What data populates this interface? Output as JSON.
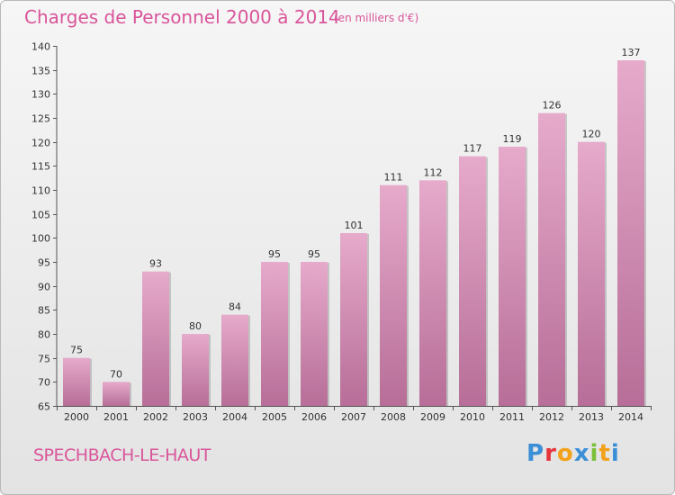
{
  "header": {
    "title": "Charges de Personnel 2000 à 2014",
    "subtitle": "(en milliers d'€)"
  },
  "footer": {
    "commune": "SPECHBACH-LE-HAUT",
    "logo_letters": [
      "P",
      "r",
      "o",
      "x",
      "i",
      "t",
      "i"
    ]
  },
  "colors": {
    "title": "#d9559a",
    "bar_top": "#e6aacb",
    "bar_bottom": "#b76e98",
    "logo": [
      "#3b8fd6",
      "#e5353b",
      "#f2a21a",
      "#3b8fd6",
      "#7cbf3a",
      "#f2a21a",
      "#3b8fd6"
    ]
  },
  "chart_data": {
    "type": "bar",
    "title": "Charges de Personnel 2000 à 2014",
    "subtitle": "(en milliers d'€)",
    "categories": [
      "2000",
      "2001",
      "2002",
      "2003",
      "2004",
      "2005",
      "2006",
      "2007",
      "2008",
      "2009",
      "2010",
      "2011",
      "2012",
      "2013",
      "2014"
    ],
    "values": [
      75,
      70,
      93,
      80,
      84,
      95,
      95,
      101,
      111,
      112,
      117,
      119,
      126,
      120,
      137
    ],
    "ylim": [
      65,
      140
    ],
    "yticks": [
      65,
      70,
      75,
      80,
      85,
      90,
      95,
      100,
      105,
      110,
      115,
      120,
      125,
      130,
      135,
      140
    ],
    "grid": false,
    "xlabel": "",
    "ylabel": ""
  }
}
